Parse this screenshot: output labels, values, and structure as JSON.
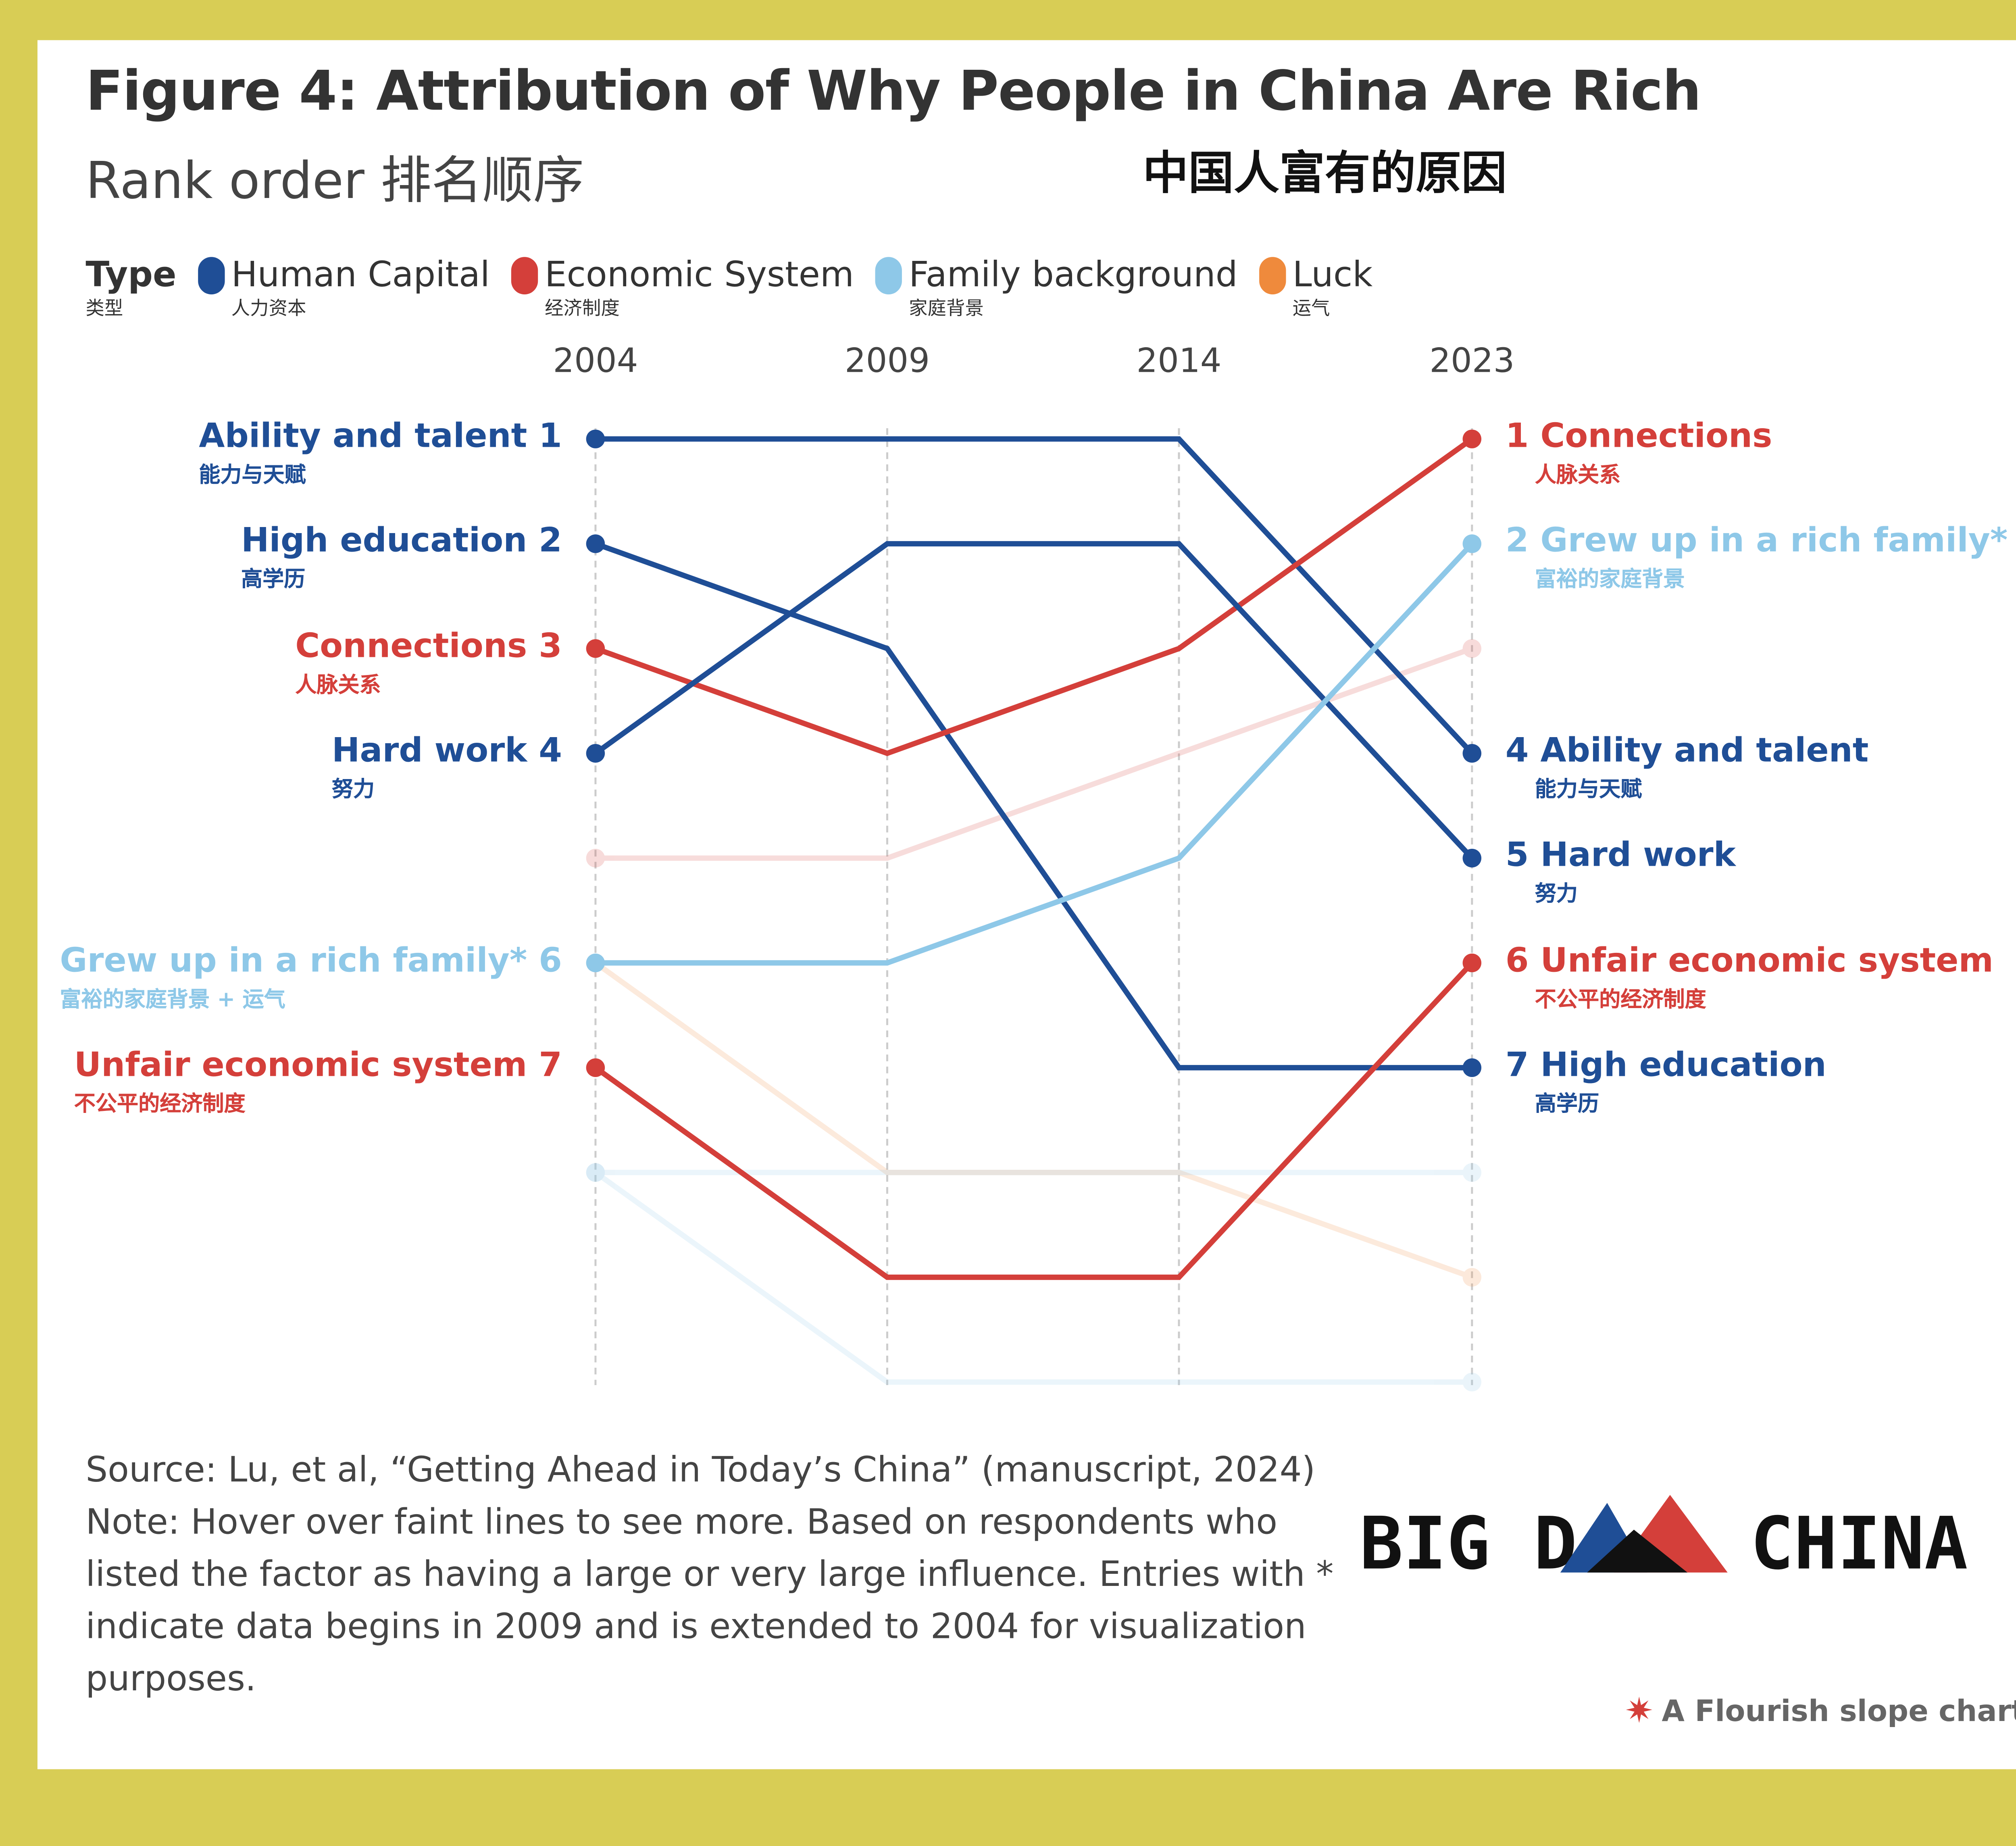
{
  "title": "Figure 4: Attribution of Why People in China Are Rich",
  "subtitle": "Rank order 排名顺序",
  "title_cn": "中国人富有的原因",
  "legend": {
    "label": "Type",
    "label_cn": "类型",
    "items": [
      {
        "name": "Human Capital",
        "cn": "人力资本",
        "color": "#1f4e96"
      },
      {
        "name": "Economic System",
        "cn": "经济制度",
        "color": "#d43f3a"
      },
      {
        "name": "Family background",
        "cn": "家庭背景",
        "color": "#8ec8e8"
      },
      {
        "name": "Luck",
        "cn": "运气",
        "color": "#ef8a3c"
      }
    ]
  },
  "chart_data": {
    "type": "slope",
    "x": [
      "2004",
      "2009",
      "2014",
      "2023"
    ],
    "y_axis": "rank (1 = top)",
    "series": [
      {
        "name": "Ability and talent",
        "cn": "能力与天赋",
        "type": "Human Capital",
        "ranks": [
          1,
          1,
          1,
          4
        ],
        "faint": false,
        "left_label": "Ability and talent 1",
        "right_label": "4 Ability and talent"
      },
      {
        "name": "High education",
        "cn": "高学历",
        "type": "Human Capital",
        "ranks": [
          2,
          3,
          7,
          7
        ],
        "faint": false,
        "left_label": "High education 2",
        "right_label": "7 High education"
      },
      {
        "name": "Connections",
        "cn": "人脉关系",
        "type": "Economic System",
        "ranks": [
          3,
          4,
          3,
          1
        ],
        "faint": false,
        "left_label": "Connections 3",
        "right_label": "1 Connections"
      },
      {
        "name": "Hard work",
        "cn": "努力",
        "type": "Human Capital",
        "ranks": [
          4,
          2,
          2,
          5
        ],
        "faint": false,
        "left_label": "Hard work 4",
        "right_label": "5 Hard work"
      },
      {
        "name": "Grew up in a rich family*",
        "cn": "富裕的家庭背景",
        "type": "Family background",
        "ranks": [
          6,
          6,
          5,
          2
        ],
        "faint": false,
        "left_label": "Grew up in a rich family* 6",
        "left_cn": "富裕的家庭背景 + 运气",
        "right_label": "2 Grew up in a rich family*"
      },
      {
        "name": "Unfair economic system",
        "cn": "不公平的经济制度",
        "type": "Economic System",
        "ranks": [
          7,
          9,
          9,
          6
        ],
        "faint": false,
        "left_label": "Unfair economic system 7",
        "right_label": "6 Unfair economic system"
      },
      {
        "type": "Economic System",
        "ranks": [
          5,
          5,
          4,
          3
        ],
        "faint": true
      },
      {
        "type": "Luck",
        "ranks": [
          6,
          8,
          8,
          9
        ],
        "faint": true
      },
      {
        "type": "Family background",
        "ranks": [
          8,
          8,
          8,
          8
        ],
        "faint": true
      },
      {
        "type": "Family background",
        "ranks": [
          8,
          10,
          10,
          10
        ],
        "faint": true
      }
    ]
  },
  "source": "Source: Lu, et al, “Getting Ahead in Today’s China” (manuscript, 2024)",
  "note": "Note: Hover over faint lines to see more. Based on respondents who listed the factor as having a large or very large influence. Entries with * indicate data begins in 2009 and is extended to 2004 for visualization purposes.",
  "logo": "BIG DATA CHINA",
  "credit": "A Flourish slope chart"
}
